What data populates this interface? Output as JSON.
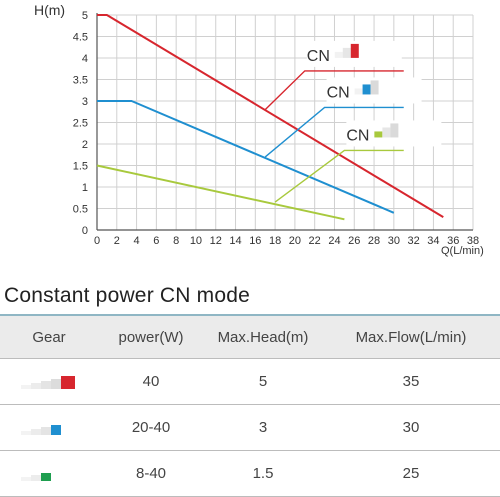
{
  "chart_data": {
    "type": "line",
    "title": "",
    "xlabel": "Q(L/min)",
    "ylabel": "H(m)",
    "xlim": [
      0,
      38
    ],
    "ylim": [
      0,
      5
    ],
    "x_ticks": [
      "0",
      "2",
      "4",
      "6",
      "8",
      "10",
      "12",
      "14",
      "16",
      "18",
      "20",
      "22",
      "24",
      "26",
      "28",
      "30",
      "32",
      "34",
      "36",
      "38"
    ],
    "y_ticks": [
      "0",
      "0.5",
      "1",
      "1.5",
      "2",
      "2.5",
      "3",
      "3.5",
      "4",
      "4.5",
      "5"
    ],
    "grid": true,
    "series": [
      {
        "name": "CN",
        "color": "#d7262e",
        "points": [
          [
            0,
            5
          ],
          [
            1,
            5
          ],
          [
            35,
            0.3
          ]
        ]
      },
      {
        "name": "CN",
        "color": "#1f8fd0",
        "points": [
          [
            0,
            3
          ],
          [
            3.5,
            3
          ],
          [
            30,
            0.4
          ]
        ]
      },
      {
        "name": "CN",
        "color": "#a8c93d",
        "points": [
          [
            0,
            1.5
          ],
          [
            25,
            0.25
          ]
        ]
      }
    ],
    "legend": [
      {
        "label": "CN",
        "color": "#d7262e",
        "anchor": [
          17,
          2.8
        ],
        "elbow": [
          21,
          3.7
        ],
        "end": [
          31,
          3.7
        ]
      },
      {
        "label": "CN",
        "color": "#1f8fd0",
        "anchor": [
          17,
          1.7
        ],
        "elbow": [
          23,
          2.85
        ],
        "end": [
          31,
          2.85
        ]
      },
      {
        "label": "CN",
        "color": "#a8c93d",
        "anchor": [
          18,
          0.65
        ],
        "elbow": [
          25,
          1.85
        ],
        "end": [
          31,
          1.85
        ]
      }
    ]
  },
  "section_title": "Constant power CN mode",
  "table": {
    "headers": [
      "Gear",
      "power(W)",
      "Max.Head(m)",
      "Max.Flow(L/min)"
    ],
    "rows": [
      {
        "gear_color": "#d7262e",
        "gear_level": 3,
        "power": "40",
        "head": "5",
        "flow": "35"
      },
      {
        "gear_color": "#1f8fd0",
        "gear_level": 2,
        "power": "20-40",
        "head": "3",
        "flow": "30"
      },
      {
        "gear_color": "#1e9e4f",
        "gear_level": 1,
        "power": "8-40",
        "head": "1.5",
        "flow": "25"
      }
    ]
  }
}
